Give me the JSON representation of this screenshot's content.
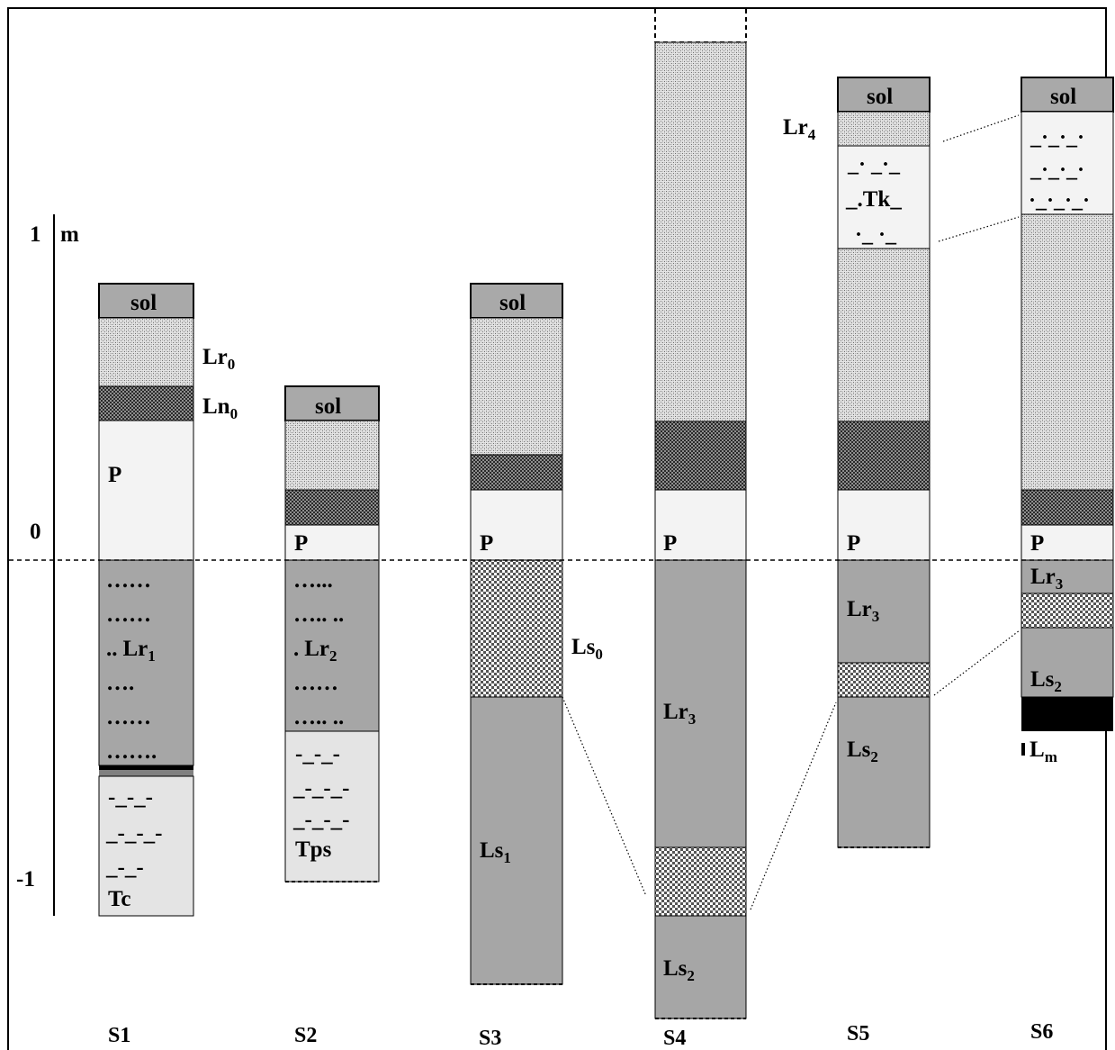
{
  "scale": {
    "unit": "m",
    "ticks": [
      "1",
      "0",
      "-1"
    ]
  },
  "columns": [
    {
      "name": "S1",
      "labels": {
        "sol": "sol",
        "lr0": "Lr",
        "lr0_sub": "0",
        "ln0": "Ln",
        "ln0_sub": "0",
        "p": "P",
        "dots1": "……",
        "dots2": "……",
        "lr1_prefix": "..",
        "lr1": "Lr",
        "lr1_sub": "1",
        "dots3": "….",
        "dots4": "……",
        "dots5": "…….",
        "dash1": "-_-_-",
        "dash2": "_-_-_-",
        "dash3": "_-_-",
        "tc": "Tc"
      }
    },
    {
      "name": "S2",
      "labels": {
        "sol": "sol",
        "p": "P",
        "dots1": "…...",
        "dots2": "….. ..",
        "lr2_prefix": ".",
        "lr2": "Lr",
        "lr2_sub": "2",
        "dots3": "……",
        "dots4": "….. ..",
        "dash1": "-_-_-",
        "dash2": "_-_-_-",
        "dash3": "_-_-_-",
        "tps": "Tps"
      }
    },
    {
      "name": "S3",
      "labels": {
        "sol": "sol",
        "p": "P",
        "ls0": "Ls",
        "ls0_sub": "0",
        "ls1": "Ls",
        "ls1_sub": "1"
      }
    },
    {
      "name": "S4",
      "labels": {
        "p": "P",
        "lr3": "Lr",
        "lr3_sub": "3",
        "ls2": "Ls",
        "ls2_sub": "2"
      }
    },
    {
      "name": "S5",
      "labels": {
        "sol": "sol",
        "lr4": "Lr",
        "lr4_sub": "4",
        "tk1": "_· _·_",
        "tk2": "_.Tk_",
        "tk3": "·_ ·_",
        "p": "P",
        "lr3": "Lr",
        "lr3_sub": "3",
        "ls2": "Ls",
        "ls2_sub": "2"
      }
    },
    {
      "name": "S6",
      "labels": {
        "sol": "sol",
        "t1": "_·_·_·",
        "t2": "_·_·_·",
        "t3": "·_·_·_·",
        "p": "P",
        "lr3": "Lr",
        "lr3_sub": "3",
        "ls2": "Ls",
        "ls2_sub": "2",
        "lm": "L",
        "lm_sub": "m"
      }
    }
  ]
}
